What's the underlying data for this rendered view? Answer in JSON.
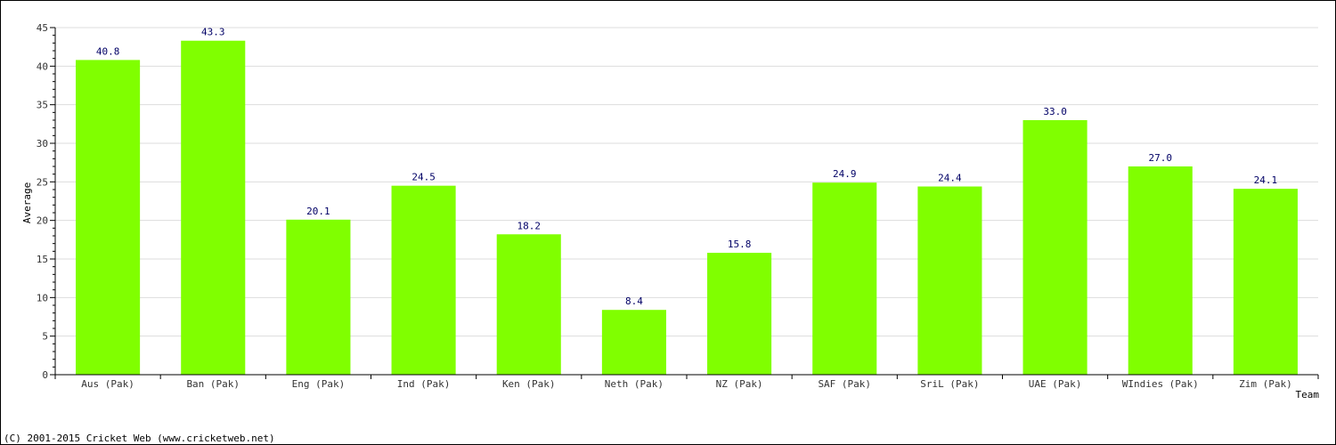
{
  "chart_data": {
    "type": "bar",
    "title": "",
    "xlabel": "Team",
    "ylabel": "Average",
    "ylim": [
      0,
      45
    ],
    "yticks": [
      0,
      5,
      10,
      15,
      20,
      25,
      30,
      35,
      40,
      45
    ],
    "grid": true,
    "legend": "none",
    "categories": [
      "Aus (Pak)",
      "Ban (Pak)",
      "Eng (Pak)",
      "Ind (Pak)",
      "Ken (Pak)",
      "Neth (Pak)",
      "NZ (Pak)",
      "SAF (Pak)",
      "SriL (Pak)",
      "UAE (Pak)",
      "WIndies (Pak)",
      "Zim (Pak)"
    ],
    "values": [
      40.8,
      43.3,
      20.1,
      24.5,
      18.2,
      8.4,
      15.8,
      24.9,
      24.4,
      33.0,
      27.0,
      24.1
    ],
    "value_labels": [
      "40.8",
      "43.3",
      "20.1",
      "24.5",
      "18.2",
      "8.4",
      "15.8",
      "24.9",
      "24.4",
      "33.0",
      "27.0",
      "24.1"
    ],
    "bar_color": "#80ff00",
    "grid_color": "#dddddd"
  },
  "footer": {
    "credit": "(C) 2001-2015 Cricket Web (www.cricketweb.net)"
  }
}
